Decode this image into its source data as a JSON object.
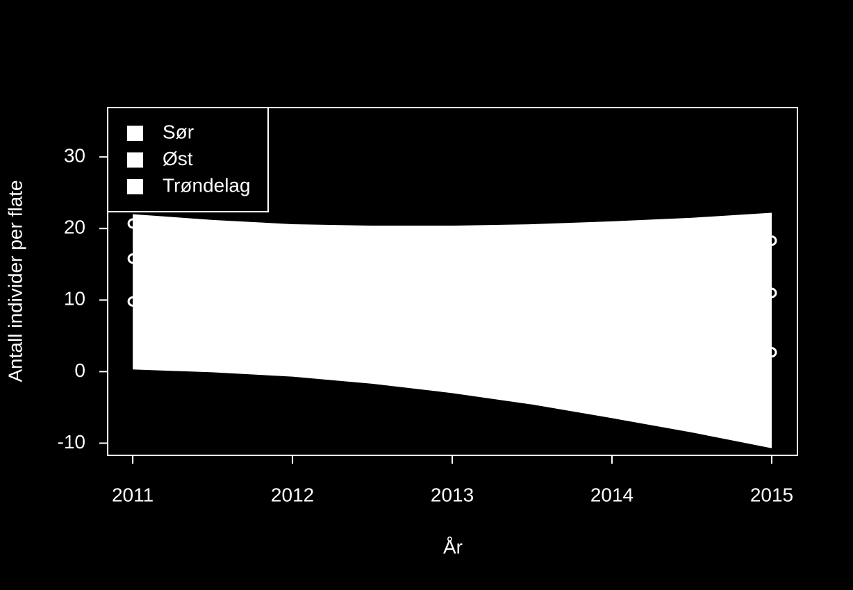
{
  "chart_data": {
    "type": "line",
    "xlabel": "År",
    "ylabel": "Antall individer per flate",
    "x": [
      2011,
      2015
    ],
    "series": [
      {
        "name": "Sør",
        "color": "#ffffff",
        "values": [
          20.7,
          18.3
        ]
      },
      {
        "name": "Øst",
        "color": "#ffffff",
        "values": [
          15.8,
          11
        ]
      },
      {
        "name": "Trøndelag",
        "color": "#ffffff",
        "values": [
          9.8,
          2.7
        ]
      }
    ],
    "band": {
      "color": "#ffffff",
      "x": [
        2011,
        2011.5,
        2012,
        2012.5,
        2013,
        2013.5,
        2014,
        2014.5,
        2015
      ],
      "upper": [
        22,
        21.2,
        20.6,
        20.4,
        20.4,
        20.6,
        21,
        21.5,
        22.2
      ],
      "lower": [
        0.3,
        -0.1,
        -0.7,
        -1.7,
        -3,
        -4.6,
        -6.5,
        -8.5,
        -10.7
      ]
    },
    "xlim": [
      2010.843,
      2015.161
    ],
    "xticks": [
      2011,
      2012,
      2013,
      2014,
      2015
    ],
    "ylim": [
      -11.7,
      36.9
    ],
    "yticks": [
      -10,
      0,
      10,
      20,
      30
    ],
    "legend": "top-left",
    "background": "#000000",
    "foreground": "#ffffff"
  }
}
